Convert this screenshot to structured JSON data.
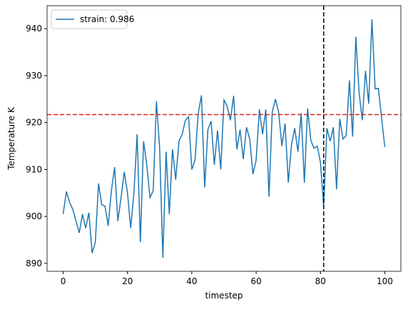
{
  "chart_data": {
    "type": "line",
    "xlabel": "timestep",
    "ylabel": "Temperature K",
    "x": [
      0,
      1,
      2,
      3,
      4,
      5,
      6,
      7,
      8,
      9,
      10,
      11,
      12,
      13,
      14,
      15,
      16,
      17,
      18,
      19,
      20,
      21,
      22,
      23,
      24,
      25,
      26,
      27,
      28,
      29,
      30,
      31,
      32,
      33,
      34,
      35,
      36,
      37,
      38,
      39,
      40,
      41,
      42,
      43,
      44,
      45,
      46,
      47,
      48,
      49,
      50,
      51,
      52,
      53,
      54,
      55,
      56,
      57,
      58,
      59,
      60,
      61,
      62,
      63,
      64,
      65,
      66,
      67,
      68,
      69,
      70,
      71,
      72,
      73,
      74,
      75,
      76,
      77,
      78,
      79,
      80,
      81,
      82,
      83,
      84,
      85,
      86,
      87,
      88,
      89,
      90,
      91,
      92,
      93,
      94,
      95,
      96,
      97,
      98,
      99,
      100
    ],
    "series": [
      {
        "name": "strain: 0.986",
        "color": "#1f77b4",
        "values": [
          900.5,
          905.3,
          903,
          901.5,
          899,
          896.5,
          900.5,
          897.5,
          900.8,
          892.2,
          894.5,
          907,
          902.5,
          902.2,
          898,
          905.5,
          910.5,
          899,
          904,
          909.5,
          905,
          897.5,
          905,
          917.5,
          894.5,
          916,
          911,
          904,
          905.5,
          924.5,
          914.5,
          891.2,
          913.8,
          900.5,
          914.3,
          907.8,
          916,
          917.5,
          920.5,
          921.2,
          910,
          912,
          922,
          925.8,
          906.2,
          918.5,
          920.3,
          911,
          918.3,
          910,
          924.8,
          923.5,
          920.5,
          925.7,
          914.3,
          918.5,
          912.2,
          919,
          916.5,
          909,
          912,
          922.8,
          917.5,
          922.8,
          904.2,
          922.2,
          925,
          922.2,
          915,
          919.8,
          907.2,
          915.3,
          918.8,
          913.8,
          922,
          907.2,
          923,
          916.2,
          914.5,
          915,
          911.5,
          902,
          918.8,
          916,
          919,
          905.8,
          920.8,
          916.5,
          917.2,
          929,
          917,
          938.3,
          926.5,
          920.5,
          931,
          924,
          942,
          927.2,
          927.3,
          921,
          914.8
        ]
      }
    ],
    "hline": {
      "value": 921.7,
      "color": "#d62728"
    },
    "vline": {
      "value": 81,
      "color": "#000000"
    },
    "xlim": [
      -5,
      105
    ],
    "ylim": [
      888.3,
      944.9
    ],
    "xticks": [
      0,
      20,
      40,
      60,
      80,
      100
    ],
    "yticks": [
      890,
      900,
      910,
      920,
      930,
      940
    ],
    "legend": "upper left"
  }
}
